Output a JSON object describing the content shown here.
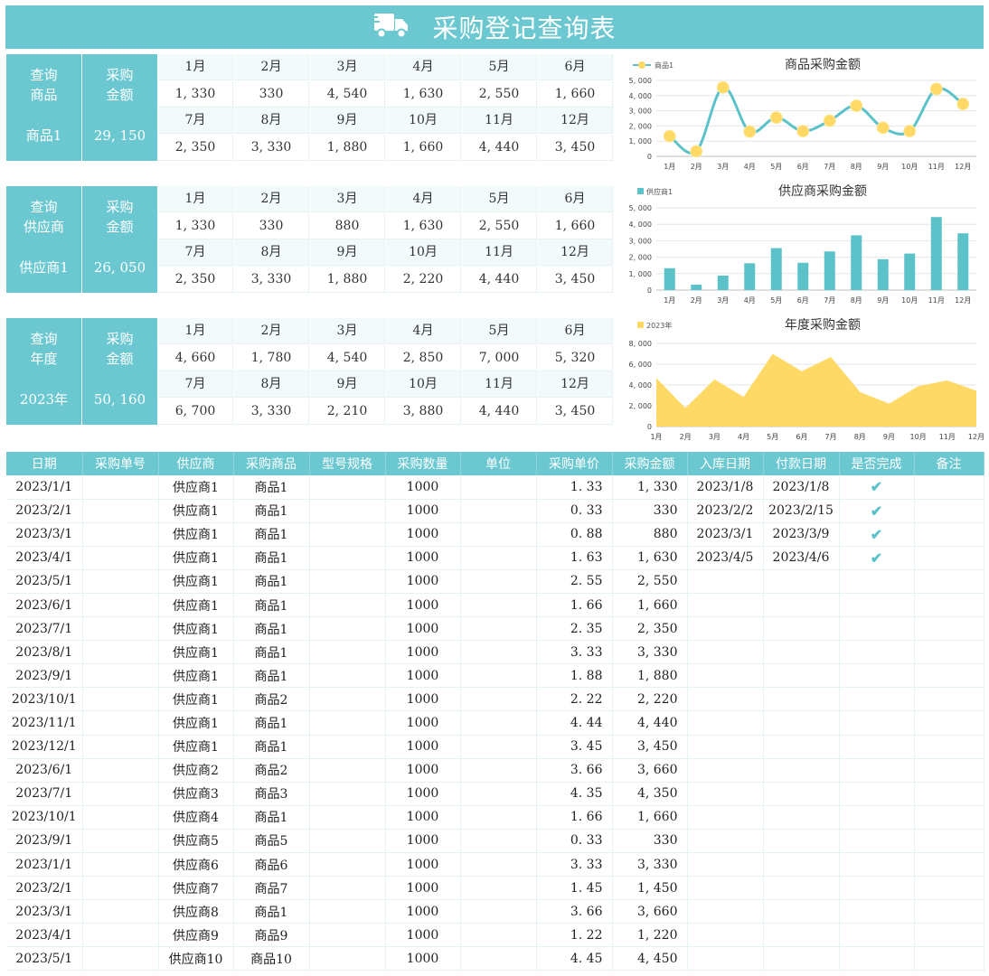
{
  "title": "采购登记查询表",
  "colors": {
    "accent": "#6cc8d0",
    "line": "#5cc2c9",
    "marker": "#ffd966",
    "area": "#ffd966"
  },
  "icons": {
    "title": "truck-icon",
    "done": "check-icon"
  },
  "queries": [
    {
      "label": "查询\n商品",
      "amount_label": "采购\n金额",
      "selected": "商品1",
      "total": "29, 150",
      "months": [
        "1月",
        "2月",
        "3月",
        "4月",
        "5月",
        "6月",
        "7月",
        "8月",
        "9月",
        "10月",
        "11月",
        "12月"
      ],
      "values": [
        "1, 330",
        "330",
        "4, 540",
        "1, 630",
        "2, 550",
        "1, 660",
        "2, 350",
        "3, 330",
        "1, 880",
        "1, 660",
        "4, 440",
        "3, 450"
      ]
    },
    {
      "label": "查询\n供应商",
      "amount_label": "采购\n金额",
      "selected": "供应商1",
      "total": "26, 050",
      "months": [
        "1月",
        "2月",
        "3月",
        "4月",
        "5月",
        "6月",
        "7月",
        "8月",
        "9月",
        "10月",
        "11月",
        "12月"
      ],
      "values": [
        "1, 330",
        "330",
        "880",
        "1, 630",
        "2, 550",
        "1, 660",
        "2, 350",
        "3, 330",
        "1, 880",
        "2, 220",
        "4, 440",
        "3, 450"
      ]
    },
    {
      "label": "查询\n年度",
      "amount_label": "采购\n金额",
      "selected": "2023年",
      "total": "50, 160",
      "months": [
        "1月",
        "2月",
        "3月",
        "4月",
        "5月",
        "6月",
        "7月",
        "8月",
        "9月",
        "10月",
        "11月",
        "12月"
      ],
      "values": [
        "4, 660",
        "1, 780",
        "4, 540",
        "2, 850",
        "7, 000",
        "5, 320",
        "6, 700",
        "3, 330",
        "2, 210",
        "3, 880",
        "4, 440",
        "3, 450"
      ]
    }
  ],
  "chart_data": [
    {
      "type": "line",
      "title": "商品采购金额",
      "legend": "商品1",
      "categories": [
        "1月",
        "2月",
        "3月",
        "4月",
        "5月",
        "6月",
        "7月",
        "8月",
        "9月",
        "10月",
        "11月",
        "12月"
      ],
      "values": [
        1330,
        330,
        4540,
        1630,
        2550,
        1660,
        2350,
        3330,
        1880,
        1660,
        4440,
        3450
      ],
      "ylim": [
        0,
        5000
      ],
      "yticks": [
        "0",
        "1, 000",
        "2, 000",
        "3, 000",
        "4, 000",
        "5, 000"
      ]
    },
    {
      "type": "bar",
      "title": "供应商采购金额",
      "legend": "供应商1",
      "categories": [
        "1月",
        "2月",
        "3月",
        "4月",
        "5月",
        "6月",
        "7月",
        "8月",
        "9月",
        "10月",
        "11月",
        "12月"
      ],
      "values": [
        1330,
        330,
        880,
        1630,
        2550,
        1660,
        2350,
        3330,
        1880,
        2220,
        4440,
        3450
      ],
      "ylim": [
        0,
        5000
      ],
      "yticks": [
        "0",
        "1, 000",
        "2, 000",
        "3, 000",
        "4, 000",
        "5, 000"
      ]
    },
    {
      "type": "area",
      "title": "年度采购金额",
      "legend": "2023年",
      "categories": [
        "1月",
        "2月",
        "3月",
        "4月",
        "5月",
        "6月",
        "7月",
        "8月",
        "9月",
        "10月",
        "11月",
        "12月"
      ],
      "values": [
        4660,
        1780,
        4540,
        2850,
        7000,
        5320,
        6700,
        3330,
        2210,
        3880,
        4440,
        3450
      ],
      "ylim": [
        0,
        8000
      ],
      "yticks": [
        "0",
        "2, 000",
        "4, 000",
        "6, 000",
        "8, 000"
      ]
    }
  ],
  "table": {
    "headers": [
      "日期",
      "采购单号",
      "供应商",
      "采购商品",
      "型号规格",
      "采购数量",
      "单位",
      "采购单价",
      "采购金额",
      "入库日期",
      "付款日期",
      "是否完成",
      "备注"
    ],
    "rows": [
      [
        "2023/1/1",
        "",
        "供应商1",
        "商品1",
        "",
        "1000",
        "",
        "1. 33",
        "1, 330",
        "2023/1/8",
        "2023/1/8",
        "✔",
        ""
      ],
      [
        "2023/2/1",
        "",
        "供应商1",
        "商品1",
        "",
        "1000",
        "",
        "0. 33",
        "330",
        "2023/2/2",
        "2023/2/15",
        "✔",
        ""
      ],
      [
        "2023/3/1",
        "",
        "供应商1",
        "商品1",
        "",
        "1000",
        "",
        "0. 88",
        "880",
        "2023/3/1",
        "2023/3/9",
        "✔",
        ""
      ],
      [
        "2023/4/1",
        "",
        "供应商1",
        "商品1",
        "",
        "1000",
        "",
        "1. 63",
        "1, 630",
        "2023/4/5",
        "2023/4/6",
        "✔",
        ""
      ],
      [
        "2023/5/1",
        "",
        "供应商1",
        "商品1",
        "",
        "1000",
        "",
        "2. 55",
        "2, 550",
        "",
        "",
        "",
        ""
      ],
      [
        "2023/6/1",
        "",
        "供应商1",
        "商品1",
        "",
        "1000",
        "",
        "1. 66",
        "1, 660",
        "",
        "",
        "",
        ""
      ],
      [
        "2023/7/1",
        "",
        "供应商1",
        "商品1",
        "",
        "1000",
        "",
        "2. 35",
        "2, 350",
        "",
        "",
        "",
        ""
      ],
      [
        "2023/8/1",
        "",
        "供应商1",
        "商品1",
        "",
        "1000",
        "",
        "3. 33",
        "3, 330",
        "",
        "",
        "",
        ""
      ],
      [
        "2023/9/1",
        "",
        "供应商1",
        "商品1",
        "",
        "1000",
        "",
        "1. 88",
        "1, 880",
        "",
        "",
        "",
        ""
      ],
      [
        "2023/10/1",
        "",
        "供应商1",
        "商品2",
        "",
        "1000",
        "",
        "2. 22",
        "2, 220",
        "",
        "",
        "",
        ""
      ],
      [
        "2023/11/1",
        "",
        "供应商1",
        "商品1",
        "",
        "1000",
        "",
        "4. 44",
        "4, 440",
        "",
        "",
        "",
        ""
      ],
      [
        "2023/12/1",
        "",
        "供应商1",
        "商品1",
        "",
        "1000",
        "",
        "3. 45",
        "3, 450",
        "",
        "",
        "",
        ""
      ],
      [
        "2023/6/1",
        "",
        "供应商2",
        "商品2",
        "",
        "1000",
        "",
        "3. 66",
        "3, 660",
        "",
        "",
        "",
        ""
      ],
      [
        "2023/7/1",
        "",
        "供应商3",
        "商品3",
        "",
        "1000",
        "",
        "4. 35",
        "4, 350",
        "",
        "",
        "",
        ""
      ],
      [
        "2023/10/1",
        "",
        "供应商4",
        "商品1",
        "",
        "1000",
        "",
        "1. 66",
        "1, 660",
        "",
        "",
        "",
        ""
      ],
      [
        "2023/9/1",
        "",
        "供应商5",
        "商品5",
        "",
        "1000",
        "",
        "0. 33",
        "330",
        "",
        "",
        "",
        ""
      ],
      [
        "2023/1/1",
        "",
        "供应商6",
        "商品6",
        "",
        "1000",
        "",
        "3. 33",
        "3, 330",
        "",
        "",
        "",
        ""
      ],
      [
        "2023/2/1",
        "",
        "供应商7",
        "商品7",
        "",
        "1000",
        "",
        "1. 45",
        "1, 450",
        "",
        "",
        "",
        ""
      ],
      [
        "2023/3/1",
        "",
        "供应商8",
        "商品1",
        "",
        "1000",
        "",
        "3. 66",
        "3, 660",
        "",
        "",
        "",
        ""
      ],
      [
        "2023/4/1",
        "",
        "供应商9",
        "商品9",
        "",
        "1000",
        "",
        "1. 22",
        "1, 220",
        "",
        "",
        "",
        ""
      ],
      [
        "2023/5/1",
        "",
        "供应商10",
        "商品10",
        "",
        "1000",
        "",
        "4. 45",
        "4, 450",
        "",
        "",
        "",
        ""
      ]
    ]
  }
}
